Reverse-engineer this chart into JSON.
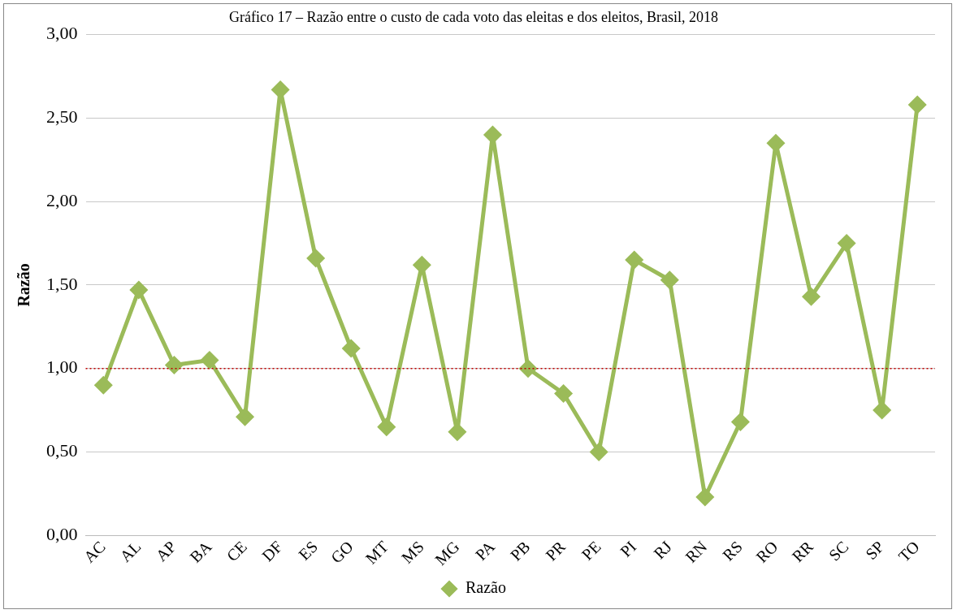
{
  "chart_data": {
    "type": "line",
    "title": "Gráfico 17 – Razão entre o custo de cada voto das eleitas e dos eleitos, Brasil, 2018",
    "ylabel": "Razão",
    "categories": [
      "AC",
      "AL",
      "AP",
      "BA",
      "CE",
      "DF",
      "ES",
      "GO",
      "MT",
      "MS",
      "MG",
      "PA",
      "PB",
      "PR",
      "PE",
      "PI",
      "RJ",
      "RN",
      "RS",
      "RO",
      "RR",
      "SC",
      "SP",
      "TO"
    ],
    "series": [
      {
        "name": "Razão",
        "color": "#9bbb59",
        "values": [
          0.9,
          1.47,
          1.02,
          1.05,
          0.71,
          2.67,
          1.66,
          1.12,
          0.65,
          1.62,
          0.62,
          2.4,
          1.0,
          0.85,
          0.5,
          1.65,
          1.53,
          0.23,
          0.68,
          2.35,
          1.43,
          1.75,
          0.75,
          2.58
        ]
      }
    ],
    "ylim": [
      0,
      3
    ],
    "yticks": [
      {
        "value": 0,
        "label": "0,00"
      },
      {
        "value": 0.5,
        "label": "0,50"
      },
      {
        "value": 1,
        "label": "1,00"
      },
      {
        "value": 1.5,
        "label": "1,50"
      },
      {
        "value": 2,
        "label": "2,00"
      },
      {
        "value": 2.5,
        "label": "2,50"
      },
      {
        "value": 3,
        "label": "3,00"
      }
    ],
    "grid": "y",
    "legend": "bottom",
    "marker": "diamond",
    "line_style": "solid",
    "ref_lines": [
      {
        "axis": "y",
        "value": 1,
        "color": "#c00000",
        "line_style": "dotted"
      }
    ]
  }
}
